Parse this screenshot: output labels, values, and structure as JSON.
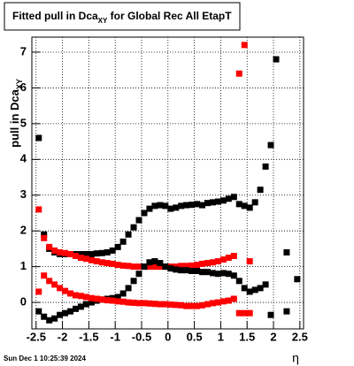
{
  "chart_data": {
    "type": "scatter",
    "title": "Fitted pull in Dca",
    "title_subscript": "XY",
    "title_rest": " for Global Rec All EtapT",
    "y_label": "pull in Dca",
    "y_label_subscript": "XY",
    "x_label": "η",
    "footer": "Sun Dec  1 10:25:39 2024",
    "xlim": [
      -2.58,
      2.57
    ],
    "ylim": [
      -0.74,
      7.42
    ],
    "xticks": [
      -2.5,
      -2,
      -1.5,
      -1,
      -0.5,
      0,
      0.5,
      1,
      1.5,
      2,
      2.5
    ],
    "yticks": [
      0,
      1,
      2,
      3,
      4,
      5,
      6,
      7
    ],
    "grid": true,
    "x": [
      -2.45,
      -2.35,
      -2.25,
      -2.15,
      -2.05,
      -1.95,
      -1.85,
      -1.75,
      -1.65,
      -1.55,
      -1.45,
      -1.35,
      -1.25,
      -1.15,
      -1.05,
      -0.95,
      -0.85,
      -0.75,
      -0.65,
      -0.55,
      -0.45,
      -0.35,
      -0.25,
      -0.15,
      -0.05,
      0.05,
      0.15,
      0.25,
      0.35,
      0.45,
      0.55,
      0.65,
      0.75,
      0.85,
      0.95,
      1.05,
      1.15,
      1.25,
      1.35,
      1.45,
      1.55,
      1.65,
      1.75,
      1.85,
      1.95,
      2.05,
      2.15,
      2.25,
      2.35,
      2.45
    ],
    "series": [
      {
        "color": "#000000",
        "values": [
          4.6,
          1.9,
          1.5,
          1.4,
          1.35,
          1.35,
          1.35,
          1.35,
          1.35,
          1.35,
          1.35,
          1.37,
          1.38,
          1.4,
          1.45,
          1.55,
          1.7,
          1.9,
          2.1,
          2.3,
          2.5,
          2.62,
          2.7,
          2.72,
          2.7,
          2.62,
          2.65,
          2.7,
          2.72,
          2.73,
          2.75,
          2.72,
          2.78,
          2.8,
          2.82,
          2.85,
          2.9,
          2.95,
          2.75,
          2.7,
          2.65,
          2.8,
          3.15,
          3.8,
          4.4,
          6.8,
          null,
          1.4,
          null,
          0.65
        ]
      },
      {
        "color": "#ff0000",
        "values": [
          2.6,
          1.8,
          1.55,
          1.45,
          1.4,
          1.38,
          1.35,
          1.3,
          1.25,
          1.22,
          1.18,
          1.15,
          1.12,
          1.1,
          1.08,
          1.05,
          1.03,
          1.02,
          1.0,
          1.0,
          1.0,
          1.0,
          1.0,
          1.0,
          1.0,
          1.0,
          1.0,
          1.02,
          1.02,
          1.03,
          1.05,
          1.08,
          1.1,
          1.12,
          1.15,
          1.2,
          1.25,
          1.3,
          6.4,
          7.2,
          1.15,
          null,
          null,
          null,
          null,
          null,
          null,
          null,
          null,
          null
        ]
      },
      {
        "color": "#000000",
        "values": [
          -0.25,
          -0.4,
          -0.5,
          -0.45,
          -0.35,
          -0.3,
          -0.25,
          -0.18,
          -0.12,
          -0.05,
          0.0,
          0.05,
          0.08,
          0.1,
          0.12,
          0.15,
          0.25,
          0.4,
          0.6,
          0.8,
          1.0,
          1.12,
          1.15,
          1.1,
          1.0,
          0.95,
          0.92,
          0.9,
          0.9,
          0.88,
          0.88,
          0.85,
          0.85,
          0.82,
          0.8,
          0.82,
          0.8,
          0.75,
          0.6,
          0.4,
          0.3,
          0.35,
          0.4,
          0.5,
          -0.35,
          null,
          null,
          -0.25,
          null,
          null
        ]
      },
      {
        "color": "#ff0000",
        "values": [
          0.3,
          0.75,
          0.6,
          0.5,
          0.4,
          0.32,
          0.25,
          0.2,
          0.18,
          0.15,
          0.12,
          0.1,
          0.08,
          0.06,
          0.05,
          0.03,
          0.02,
          0.0,
          -0.01,
          -0.02,
          -0.02,
          -0.03,
          -0.04,
          -0.05,
          -0.05,
          -0.06,
          -0.07,
          -0.08,
          -0.1,
          -0.1,
          -0.1,
          -0.08,
          -0.05,
          -0.02,
          0.0,
          0.03,
          0.05,
          0.1,
          -0.3,
          -0.3,
          -0.3,
          null,
          null,
          null,
          null,
          null,
          null,
          null,
          null,
          null
        ]
      }
    ]
  }
}
